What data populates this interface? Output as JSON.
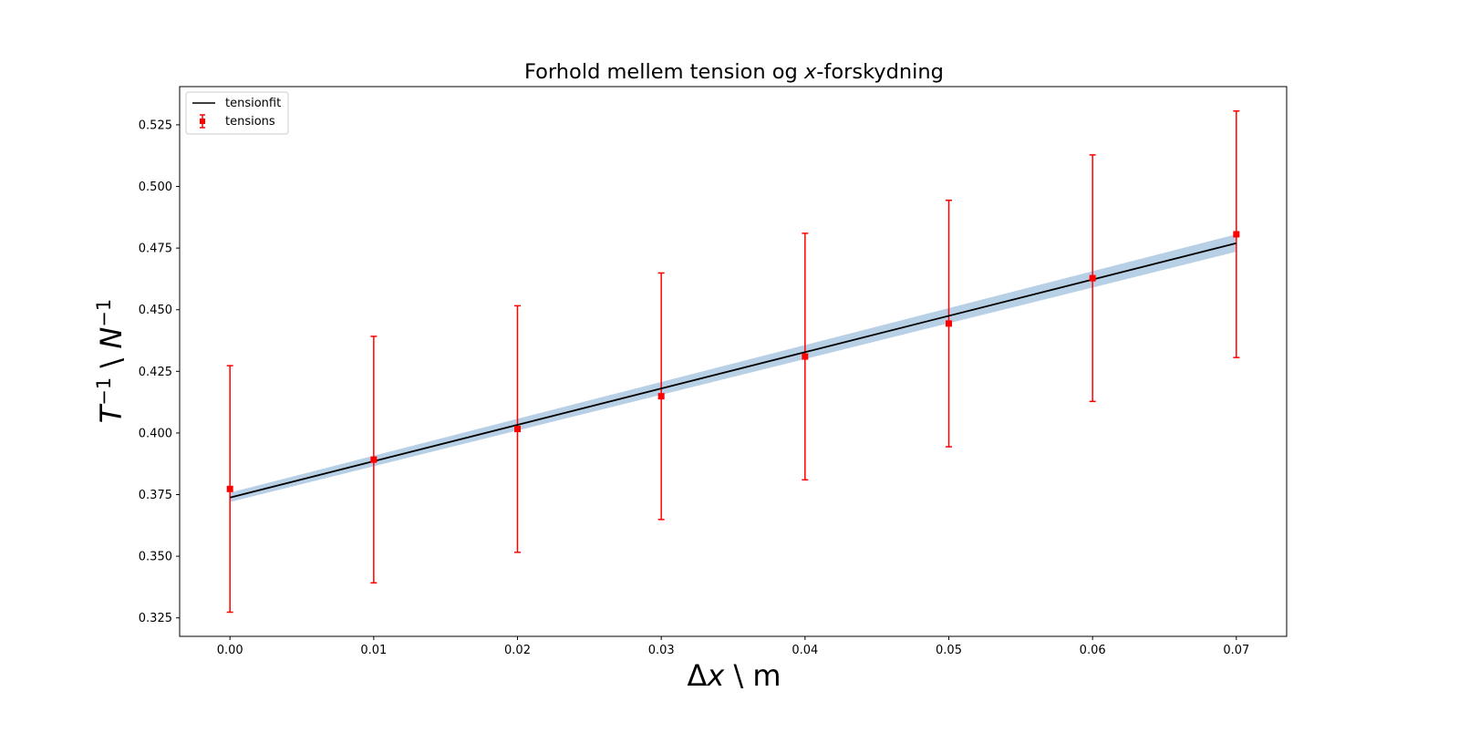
{
  "chart_data": {
    "type": "scatter",
    "title_parts": [
      "Forhold mellem tension og ",
      "x",
      "-forskydning"
    ],
    "xlabel_parts": [
      "Δ",
      "x",
      " \\ m"
    ],
    "ylabel_parts": [
      "T",
      "−1",
      " \\ ",
      "N",
      "−1"
    ],
    "xlim": [
      -0.0035,
      0.0735
    ],
    "ylim": [
      0.3175,
      0.5405
    ],
    "xticks": [
      0.0,
      0.01,
      0.02,
      0.03,
      0.04,
      0.05,
      0.06,
      0.07
    ],
    "xtick_labels": [
      "0.00",
      "0.01",
      "0.02",
      "0.03",
      "0.04",
      "0.05",
      "0.06",
      "0.07"
    ],
    "yticks": [
      0.325,
      0.35,
      0.375,
      0.4,
      0.425,
      0.45,
      0.475,
      0.5,
      0.525
    ],
    "ytick_labels": [
      "0.325",
      "0.350",
      "0.375",
      "0.400",
      "0.425",
      "0.450",
      "0.475",
      "0.500",
      "0.525"
    ],
    "grid": false,
    "legend_placement": "top-left",
    "series": [
      {
        "name": "tensions",
        "kind": "errorbar",
        "color": "#ff0000",
        "marker": "square",
        "x": [
          0.0,
          0.01,
          0.02,
          0.03,
          0.04,
          0.05,
          0.06,
          0.07
        ],
        "y": [
          0.3773,
          0.3892,
          0.4016,
          0.4149,
          0.431,
          0.4444,
          0.4628,
          0.4806
        ],
        "yerr": [
          0.05,
          0.05,
          0.05,
          0.05,
          0.05,
          0.05,
          0.05,
          0.05
        ]
      },
      {
        "name": "tensionfit",
        "kind": "line",
        "color": "#000000",
        "x": [
          0.0,
          0.07
        ],
        "y": [
          0.3738,
          0.477
        ]
      }
    ],
    "band": {
      "color": "#b8d0e6",
      "x": [
        0.0,
        0.07
      ],
      "lower": [
        0.372,
        0.4735
      ],
      "upper": [
        0.3758,
        0.4806
      ]
    }
  }
}
